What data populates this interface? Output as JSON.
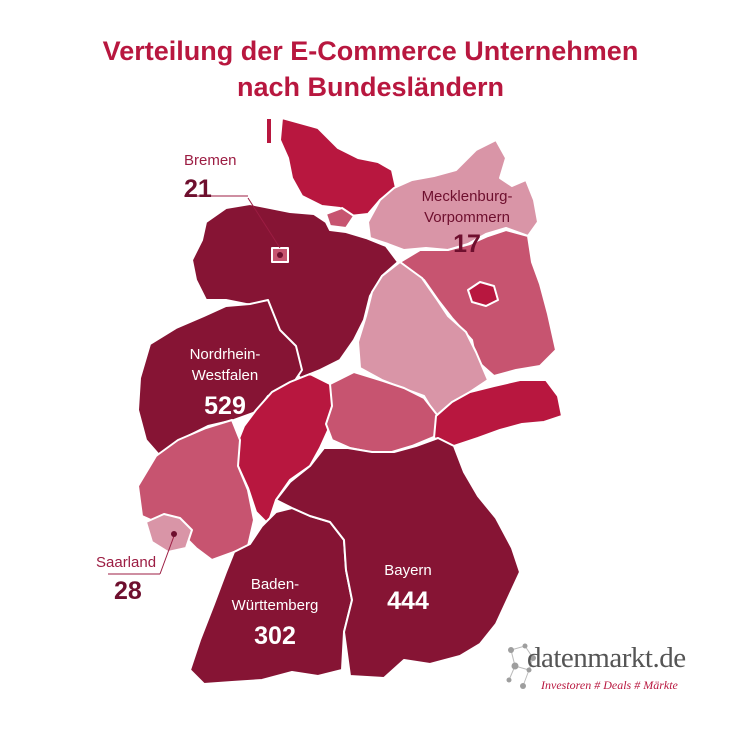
{
  "title": {
    "line1": "Verteilung der E-Commerce Unternehmen",
    "line2": "nach Bundesländern"
  },
  "colors": {
    "darkest": "#861434",
    "crimson": "#b8173f",
    "rose": "#c75470",
    "pink": "#d995a7",
    "text": "#b8173f"
  },
  "states": [
    {
      "id": "schleswig-holstein",
      "name": "Schleswig-Holstein",
      "color": "#b8173f"
    },
    {
      "id": "hamburg",
      "name": "Hamburg",
      "color": "#c75470"
    },
    {
      "id": "mecklenburg-vorpommern",
      "name": "Mecklenburg-Vorpommern",
      "color": "#d995a7",
      "count": 17
    },
    {
      "id": "niedersachsen",
      "name": "Niedersachsen",
      "color": "#861434"
    },
    {
      "id": "bremen",
      "name": "Bremen",
      "color": "#c75470",
      "count": 21
    },
    {
      "id": "brandenburg",
      "name": "Brandenburg",
      "color": "#c75470"
    },
    {
      "id": "berlin",
      "name": "Berlin",
      "color": "#b8173f"
    },
    {
      "id": "sachsen-anhalt",
      "name": "Sachsen-Anhalt",
      "color": "#d995a7"
    },
    {
      "id": "nordrhein-westfalen",
      "name": "Nordrhein-Westfalen",
      "color": "#861434",
      "count": 529
    },
    {
      "id": "hessen",
      "name": "Hessen",
      "color": "#b8173f"
    },
    {
      "id": "thueringen",
      "name": "Thüringen",
      "color": "#c75470"
    },
    {
      "id": "sachsen",
      "name": "Sachsen",
      "color": "#b8173f"
    },
    {
      "id": "rheinland-pfalz",
      "name": "Rheinland-Pfalz",
      "color": "#c75470"
    },
    {
      "id": "saarland",
      "name": "Saarland",
      "color": "#d995a7",
      "count": 28
    },
    {
      "id": "baden-wuerttemberg",
      "name": "Baden-Württemberg",
      "color": "#861434",
      "count": 302
    },
    {
      "id": "bayern",
      "name": "Bayern",
      "color": "#861434",
      "count": 444
    }
  ],
  "labels": {
    "bremen": {
      "name": "Bremen",
      "value": "21"
    },
    "mv": {
      "name_line1": "Mecklenburg-",
      "name_line2": "Vorpommern",
      "value": "17"
    },
    "nrw": {
      "name_line1": "Nordrhein-",
      "name_line2": "Westfalen",
      "value": "529"
    },
    "saarland": {
      "name": "Saarland",
      "value": "28"
    },
    "bw": {
      "name_line1": "Baden-",
      "name_line2": "Württemberg",
      "value": "302"
    },
    "bayern": {
      "name": "Bayern",
      "value": "444"
    }
  },
  "logo": {
    "name": "datenmarkt.de",
    "tagline": "Investoren # Deals # Märkte"
  }
}
